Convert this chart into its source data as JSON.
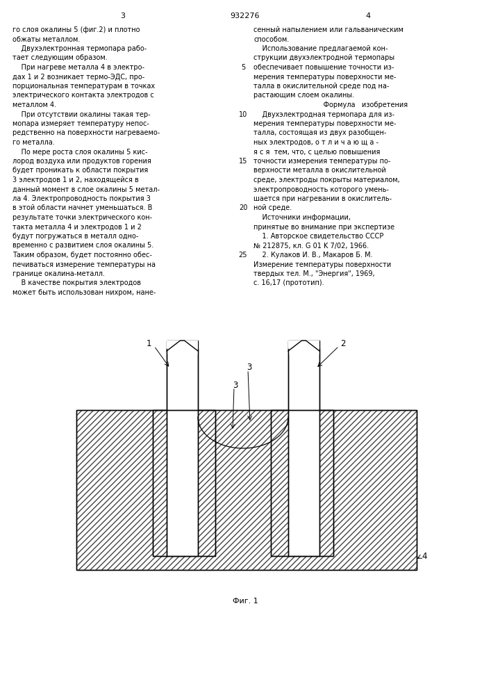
{
  "title_number": "932276",
  "left_column_text": [
    "го слоя окалины 5 (фиг.2) и плотно",
    "обжаты металлом.",
    "    Двухэлектронная термопара рабо-",
    "тает следующим образом.",
    "    При нагреве металла 4 в электро-",
    "дах 1 и 2 возникает термо-ЭДС, про-",
    "порциональная температурам в точках",
    "электрического контакта электродов с",
    "металлом 4.",
    "    При отсутствии окалины такая тер-",
    "мопара измеряет температуру непос-",
    "редственно на поверхности нагреваемо-",
    "го металла.",
    "    По мере роста слоя окалины 5 кис-",
    "лород воздуха или продуктов горения",
    "будет проникать к области покрытия",
    "3 электродов 1 и 2, находящейся в",
    "данный момент в слое окалины 5 метал-",
    "ла 4. Электропроводность покрытия 3",
    "в этой области начнет уменьшаться. В",
    "результате точки электрического кон-",
    "такта металла 4 и электродов 1 и 2",
    "будут погружаться в металл одно-",
    "временно с развитием слоя окалины 5.",
    "Таким образом, будет постоянно обес-",
    "печиваться измерение температуры на",
    "границе окалина-металл.",
    "    В качестве покрытия электродов",
    "может быть использован нихром, нане-"
  ],
  "right_column_text": [
    "сенный напылением или гальваническим",
    "способом.",
    "    Использование предлагаемой кон-",
    "струкции двухэлектродной термопары",
    "обеспечивает повышение точности из-",
    "мерения температуры поверхности ме-",
    "талла в окислительной среде под на-",
    "растающим слоем окалины.",
    "    Формула   изобретения",
    "    Двухэлектродная термопара для из-",
    "мерения температуры поверхности ме-",
    "талла, состоящая из двух разобщен-",
    "ных электродов, о т л и ч а ю щ а -",
    "я с я  тем, что, с целью повышения",
    "точности измерения температуры по-",
    "верхности металла в окислительной",
    "среде, электроды покрыты материалом,",
    "электропроводность которого умень-",
    "шается при нагревании в окислитель-",
    "ной среде.",
    "    Источники информации,",
    "принятые во внимание при экспертизе",
    "    1. Авторское свидетельство СССР",
    "№ 212875, кл. G 01 K 7/02, 1966.",
    "    2. Кулаков И. В., Макаров Б. М.",
    "Измерение температуры поверхности",
    "твердых тел. М., \"Энергия\", 1969,",
    "с. 16,17 (прототип)."
  ],
  "line_numbers": [
    "5",
    "10",
    "15",
    "20",
    "25"
  ],
  "line_number_rows": [
    4,
    9,
    14,
    19,
    24
  ],
  "fig_label": "Фиг. 1",
  "bg_color": "#ffffff",
  "text_color": "#000000"
}
